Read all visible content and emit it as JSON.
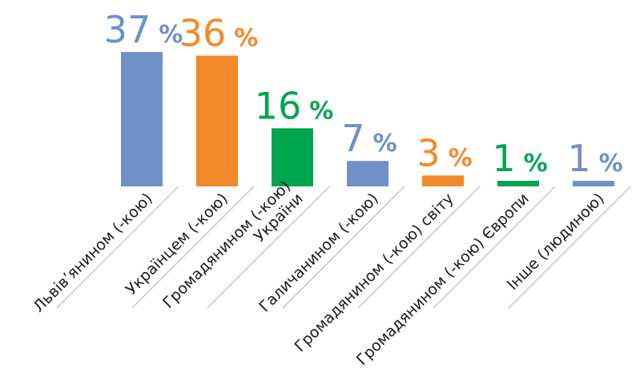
{
  "chart_data": {
    "type": "bar",
    "categories": [
      [
        "Львів’янином (-кою)"
      ],
      [
        "Українцем (-кою)"
      ],
      [
        "Громадянином (-кою)",
        "України"
      ],
      [
        "Галичанином (-кою)"
      ],
      [
        "Громадянином (-кою) світу"
      ],
      [
        "Громадянином (-кою) Європи"
      ],
      [
        "Інше (людиною)"
      ]
    ],
    "values": [
      37,
      36,
      16,
      7,
      3,
      1,
      1
    ],
    "value_labels": [
      "37",
      "36",
      "16",
      "7",
      "3",
      "1",
      "1"
    ],
    "unit": "%",
    "bar_colors": [
      "#7090C8",
      "#F28A2A",
      "#00A650",
      "#7090C8",
      "#F28A2A",
      "#00A650",
      "#7090C8"
    ],
    "title": "",
    "xlabel": "",
    "ylabel": "",
    "ylim": [
      0,
      37
    ],
    "grid": false,
    "legend": "none"
  }
}
